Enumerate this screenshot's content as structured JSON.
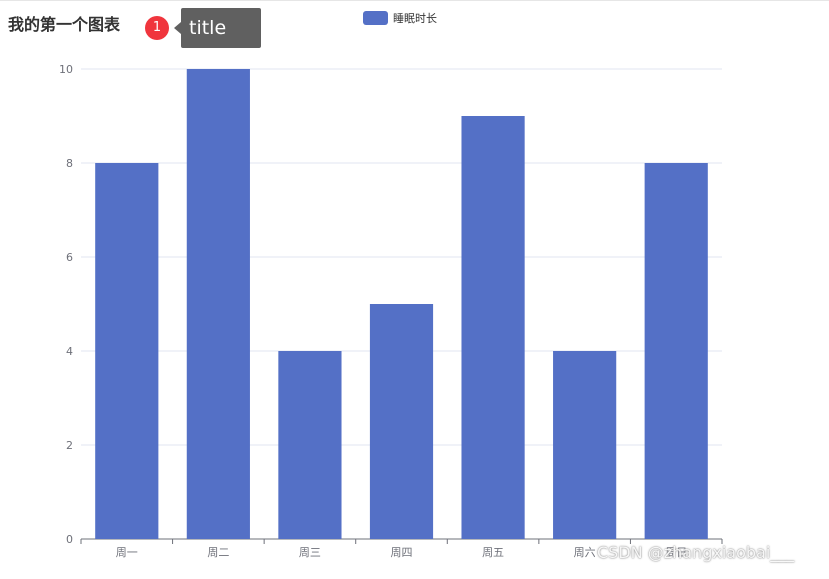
{
  "chart_data": {
    "type": "bar",
    "title": "我的第一个图表",
    "categories": [
      "周一",
      "周二",
      "周三",
      "周四",
      "周五",
      "周六",
      "周日"
    ],
    "series": [
      {
        "name": "睡眠时长",
        "values": [
          8,
          10,
          4,
          5,
          9,
          4,
          8
        ],
        "color": "#5470c6"
      }
    ],
    "ylim": [
      0,
      10
    ],
    "yticks": [
      0,
      2,
      4,
      6,
      8,
      10
    ],
    "grid": true,
    "legend": "top-center"
  },
  "annotation": {
    "badge_number": "1",
    "tooltip_text": "title"
  },
  "watermark": "CSDN @zhangxiaobai___"
}
